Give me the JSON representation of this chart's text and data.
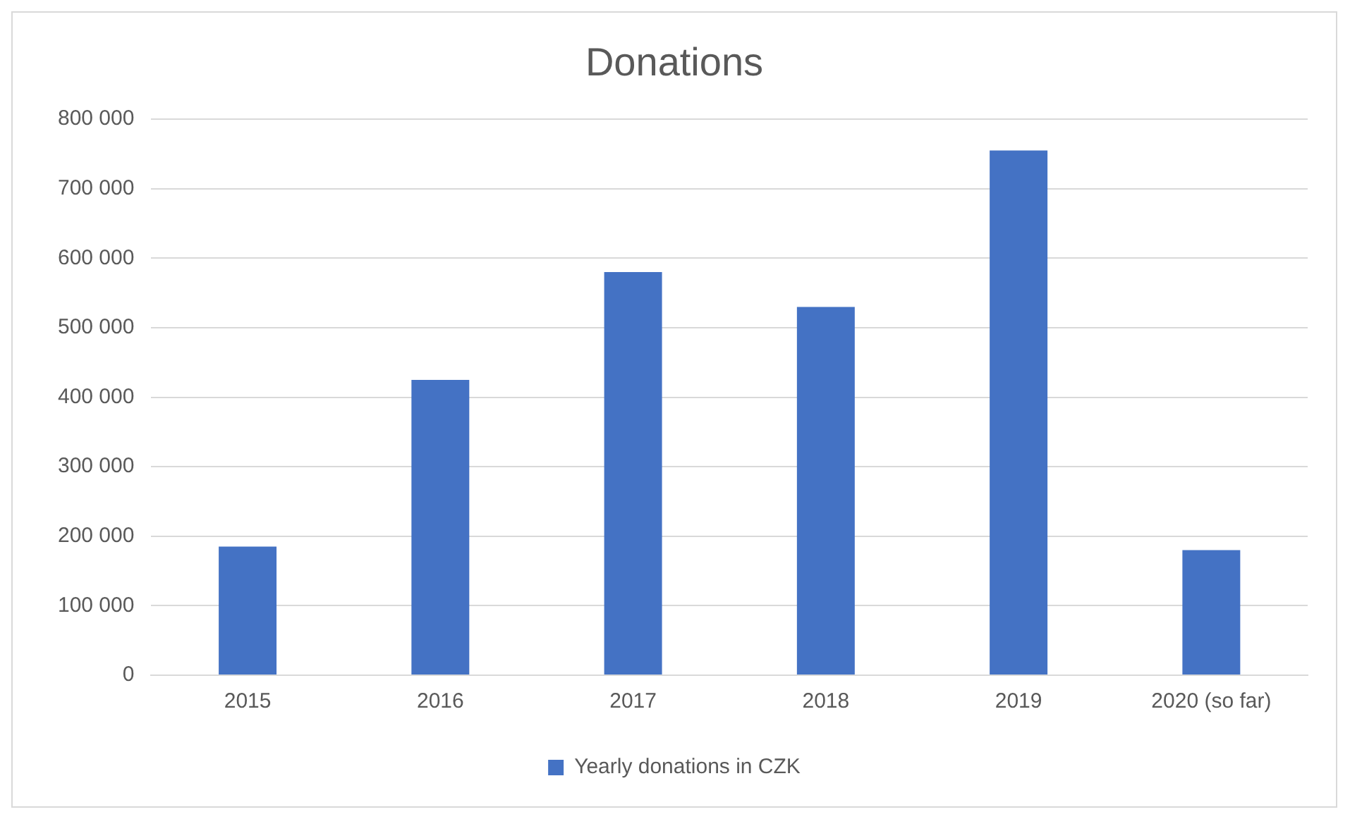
{
  "chart_data": {
    "type": "bar",
    "title": "Donations",
    "categories": [
      "2015",
      "2016",
      "2017",
      "2018",
      "2019",
      "2020 (so far)"
    ],
    "series": [
      {
        "name": "Yearly donations in CZK",
        "color": "#4472c4",
        "values": [
          185000,
          425000,
          580000,
          530000,
          755000,
          180000
        ]
      }
    ],
    "ylim": [
      0,
      800000
    ],
    "yticks": [
      {
        "value": 0,
        "label": "0"
      },
      {
        "value": 100000,
        "label": "100 000"
      },
      {
        "value": 200000,
        "label": "200 000"
      },
      {
        "value": 300000,
        "label": "300 000"
      },
      {
        "value": 400000,
        "label": "400 000"
      },
      {
        "value": 500000,
        "label": "500 000"
      },
      {
        "value": 600000,
        "label": "600 000"
      },
      {
        "value": 700000,
        "label": "700 000"
      },
      {
        "value": 800000,
        "label": "800 000"
      }
    ],
    "grid": "y",
    "legend": "bottom"
  }
}
